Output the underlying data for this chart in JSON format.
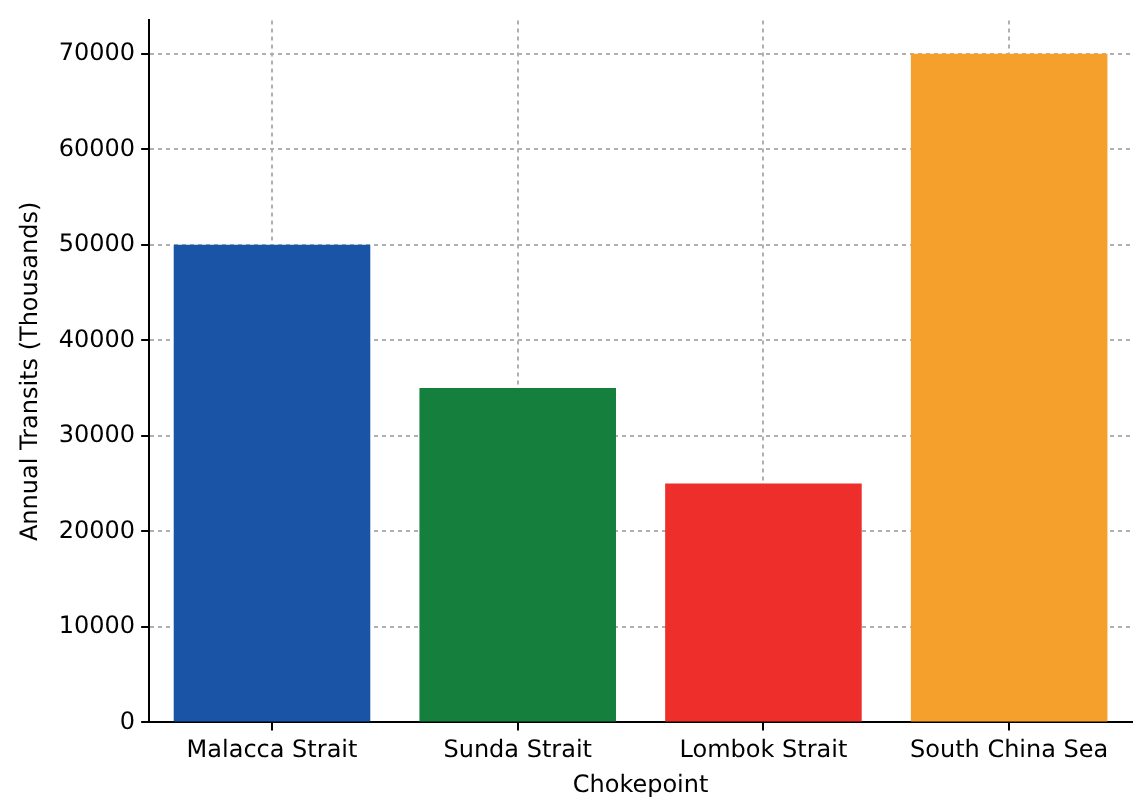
{
  "chart_data": {
    "type": "bar",
    "xlabel": "Chokepoint",
    "ylabel": "Annual Transits (Thousands)",
    "categories": [
      "Malacca Strait",
      "Sunda Strait",
      "Lombok Strait",
      "South China Sea"
    ],
    "values": [
      50000,
      35000,
      25000,
      70000
    ],
    "colors": [
      "#1a54a6",
      "#15803d",
      "#ee2e2a",
      "#f59f2c"
    ],
    "ylim": [
      0,
      73500
    ],
    "yticks": [
      0,
      10000,
      20000,
      30000,
      40000,
      50000,
      60000,
      70000
    ],
    "grid": true,
    "legend": false
  }
}
